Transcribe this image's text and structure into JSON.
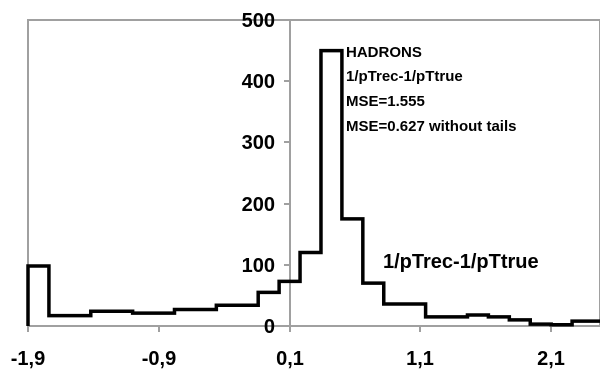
{
  "chart_data": {
    "type": "bar",
    "title": "",
    "xlabel": "",
    "ylabel": "",
    "xlim": [
      -1.9,
      2.2
    ],
    "ylim": [
      0,
      500
    ],
    "grid": false,
    "legend": "none",
    "x_ticks": [
      "-1,9",
      "-0,9",
      "0,1",
      "1,1",
      "2,1"
    ],
    "y_ticks": [
      "0",
      "100",
      "200",
      "300",
      "400",
      "500"
    ],
    "bin_edges": [
      -1.9,
      -1.75,
      -1.6,
      -1.45,
      -1.3,
      -1.15,
      -1.0,
      -0.85,
      -0.7,
      -0.55,
      -0.4,
      -0.25,
      -0.1,
      0.05,
      0.2,
      0.35,
      0.5,
      0.65,
      0.8,
      0.95,
      1.1,
      1.25,
      1.4,
      1.55,
      1.7,
      1.85,
      2.0,
      2.15,
      2.2
    ],
    "values": [
      98,
      17,
      17,
      24,
      24,
      21,
      21,
      27,
      27,
      34,
      34,
      55,
      73,
      120,
      450,
      175,
      70,
      36,
      36,
      15,
      15,
      18,
      15,
      10,
      3,
      2,
      8,
      8
    ],
    "series": [
      {
        "name": "1/pTrec-1/pTtrue"
      }
    ],
    "annotations": [
      "HADRONS",
      "1/pTrec-1/pTtrue",
      "MSE=1.555",
      "MSE=0.627 without tails"
    ],
    "series_label": "1/pTrec-1/pTtrue",
    "colors": {
      "line": "#000000",
      "frame": "#a0a0a0",
      "axis": "#a0a0a0"
    }
  }
}
